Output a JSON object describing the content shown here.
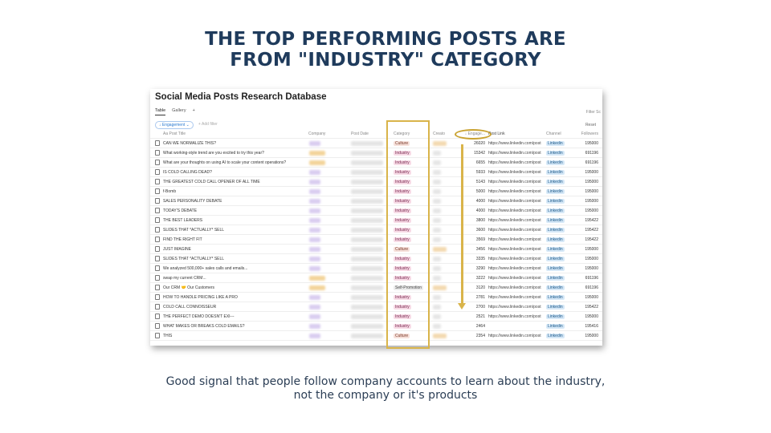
{
  "slide": {
    "title_line1": "THE TOP PERFORMING POSTS ARE",
    "title_line2": "FROM \"INDUSTRY\" CATEGORY",
    "caption_line1": "Good signal that people follow company accounts to learn about the industry,",
    "caption_line2": "not the company or it's products"
  },
  "database": {
    "title": "Social Media Posts Research Database",
    "tabs": [
      "Table",
      "Gallery",
      "+"
    ],
    "filter_label": "↓ Engagement ⌄",
    "add_filter": "+ Add filter",
    "top_right": "Filter  Sc",
    "reset": "Reset",
    "columns": {
      "title": "Aa Post Title",
      "company": "Company",
      "date": "Post Date",
      "category": "Category",
      "creator": "Creato",
      "engagement": "↓ Engage...",
      "link": "Post Link",
      "channel": "Channel",
      "followers": "Followers"
    },
    "rows": [
      {
        "title": "CAN WE NORMALIZE THIS?",
        "category": "Culture",
        "engagement": "26020",
        "link": "https://www.linkedin.com/post",
        "channel": "Linkedin",
        "followers": "195000"
      },
      {
        "title": "What working-style trend are you excited to try this year?",
        "category": "Industry",
        "engagement": "15342",
        "link": "https://www.linkedin.com/post",
        "channel": "Linkedin",
        "followers": "691196"
      },
      {
        "title": "What are your thoughts on using AI to scale your content operations?",
        "category": "Industry",
        "engagement": "6655",
        "link": "https://www.linkedin.com/post",
        "channel": "Linkedin",
        "followers": "691196"
      },
      {
        "title": "IS COLD CALLING DEAD?",
        "category": "Industry",
        "engagement": "5933",
        "link": "https://www.linkedin.com/post",
        "channel": "Linkedin",
        "followers": "195000"
      },
      {
        "title": "THE GREATEST COLD CALL OPENER OF ALL TIME",
        "category": "Industry",
        "engagement": "5143",
        "link": "https://www.linkedin.com/post",
        "channel": "Linkedin",
        "followers": "195000"
      },
      {
        "title": "f-Bomb",
        "category": "Industry",
        "engagement": "5000",
        "link": "https://www.linkedin.com/post",
        "channel": "Linkedin",
        "followers": "195000"
      },
      {
        "title": "SALES PERSONALITY DEBATE",
        "category": "Industry",
        "engagement": "4000",
        "link": "https://www.linkedin.com/post",
        "channel": "Linkedin",
        "followers": "195000"
      },
      {
        "title": "TODAY'S DEBATE",
        "category": "Industry",
        "engagement": "4000",
        "link": "https://www.linkedin.com/post",
        "channel": "Linkedin",
        "followers": "195000"
      },
      {
        "title": "THE BEST LEADERS",
        "category": "Industry",
        "engagement": "3800",
        "link": "https://www.linkedin.com/post",
        "channel": "Linkedin",
        "followers": "195422"
      },
      {
        "title": "SLIDES THAT *ACTUALLY* SELL",
        "category": "Industry",
        "engagement": "3600",
        "link": "https://www.linkedin.com/post",
        "channel": "Linkedin",
        "followers": "195422"
      },
      {
        "title": "FIND THE RIGHT FIT",
        "category": "Industry",
        "engagement": "3569",
        "link": "https://www.linkedin.com/post",
        "channel": "Linkedin",
        "followers": "195422"
      },
      {
        "title": "JUST IMAGINE",
        "category": "Culture",
        "engagement": "3456",
        "link": "https://www.linkedin.com/post",
        "channel": "Linkedin",
        "followers": "195000"
      },
      {
        "title": "SLIDES THAT *ACTUALLY* SELL",
        "category": "Industry",
        "engagement": "3335",
        "link": "https://www.linkedin.com/post",
        "channel": "Linkedin",
        "followers": "195000"
      },
      {
        "title": "We analyzed 500,000+ sales calls and emails...",
        "category": "Industry",
        "engagement": "3290",
        "link": "https://www.linkedin.com/post",
        "channel": "Linkedin",
        "followers": "195000"
      },
      {
        "title": "swap my current CRM...",
        "category": "Industry",
        "engagement": "3222",
        "link": "https://www.linkedin.com/post",
        "channel": "Linkedin",
        "followers": "691196"
      },
      {
        "title": "Our CRM 🤝 Our Customers",
        "category": "Self-Promotion",
        "engagement": "3120",
        "link": "https://www.linkedin.com/post",
        "channel": "Linkedin",
        "followers": "691196"
      },
      {
        "title": "HOW TO HANDLE PRICING LIKE A PRO",
        "category": "Industry",
        "engagement": "2781",
        "link": "https://www.linkedin.com/post",
        "channel": "Linkedin",
        "followers": "195000"
      },
      {
        "title": "COLD CALL CONNOISSEUR",
        "category": "Industry",
        "engagement": "2700",
        "link": "https://www.linkedin.com/post",
        "channel": "Linkedin",
        "followers": "195422"
      },
      {
        "title": "THE PERFECT DEMO DOESN'T EXI---",
        "category": "Industry",
        "engagement": "2521",
        "link": "https://www.linkedin.com/post",
        "channel": "Linkedin",
        "followers": "195000"
      },
      {
        "title": "WHAT MAKES OR BREAKS COLD EMAILS?",
        "category": "Industry",
        "engagement": "2464",
        "link": "",
        "channel": "Linkedin",
        "followers": "195416"
      },
      {
        "title": "THIS",
        "category": "Culture",
        "engagement": "2354",
        "link": "https://www.linkedin.com/post",
        "channel": "Linkedin",
        "followers": "195000"
      }
    ]
  },
  "colors": {
    "title": "#1f3b5c",
    "highlight": "#d9b44a",
    "industry_tag": "#f7dbe6"
  }
}
